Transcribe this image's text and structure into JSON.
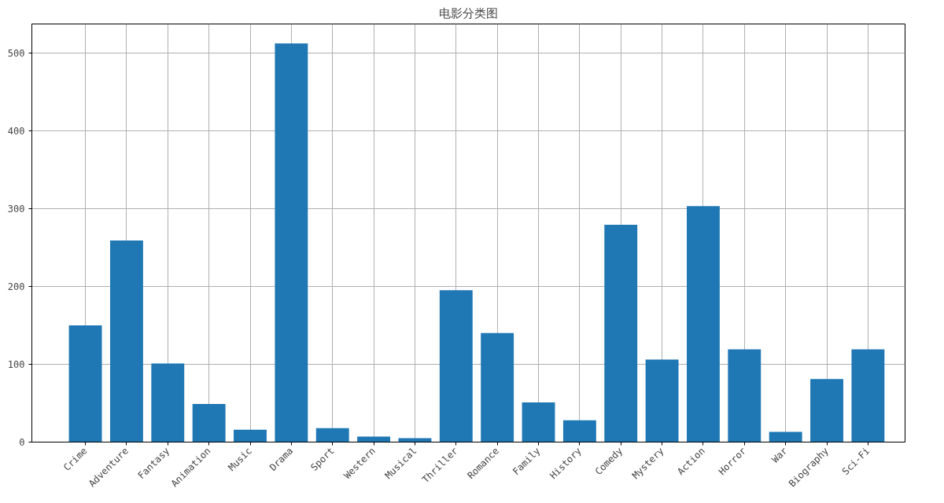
{
  "chart_data": {
    "type": "bar",
    "title": "电影分类图",
    "categories": [
      "Crime",
      "Adventure",
      "Fantasy",
      "Animation",
      "Music",
      "Drama",
      "Sport",
      "Western",
      "Musical",
      "Thriller",
      "Romance",
      "Family",
      "History",
      "Comedy",
      "Mystery",
      "Action",
      "Horror",
      "War",
      "Biography",
      "Sci-Fi"
    ],
    "values": [
      150,
      259,
      101,
      49,
      16,
      512,
      18,
      7,
      5,
      195,
      140,
      51,
      28,
      279,
      106,
      303,
      119,
      13,
      81,
      119
    ],
    "color": "#1f77b4",
    "ylim": [
      0,
      537
    ],
    "yticks": [
      0,
      100,
      200,
      300,
      400,
      500
    ],
    "grid": true
  }
}
